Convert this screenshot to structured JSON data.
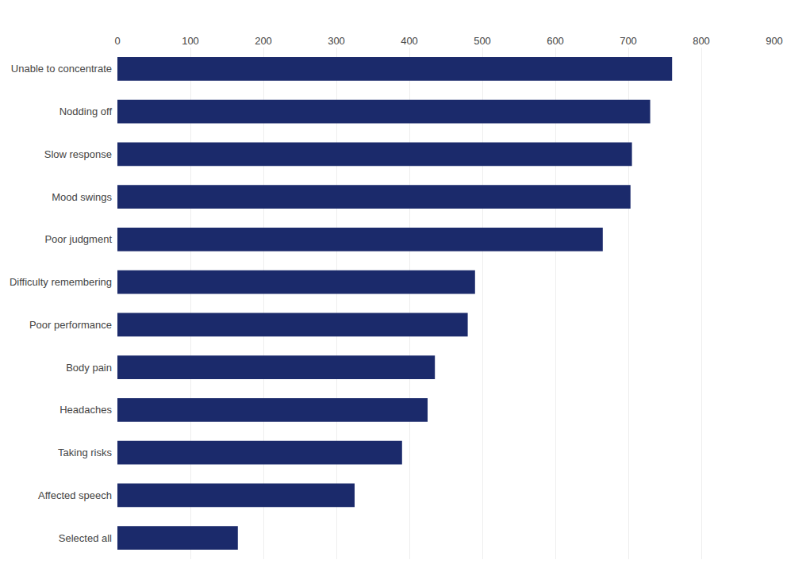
{
  "chart_data": {
    "type": "bar",
    "orientation": "horizontal",
    "categories": [
      "Selected all",
      "Affected speech",
      "Taking risks",
      "Headaches",
      "Body pain",
      "Poor performance",
      "Difficulty remembering",
      "Poor judgment",
      "Mood swings",
      "Slow response",
      "Nodding off",
      "Unable to concentrate"
    ],
    "values": [
      165,
      325,
      390,
      425,
      435,
      480,
      490,
      665,
      703,
      705,
      730,
      760
    ],
    "color": "#1b2a6b",
    "xlim": [
      0,
      900
    ],
    "xticks": [
      0,
      100,
      200,
      300,
      400,
      500,
      600,
      700,
      800,
      900
    ],
    "grid": true
  }
}
